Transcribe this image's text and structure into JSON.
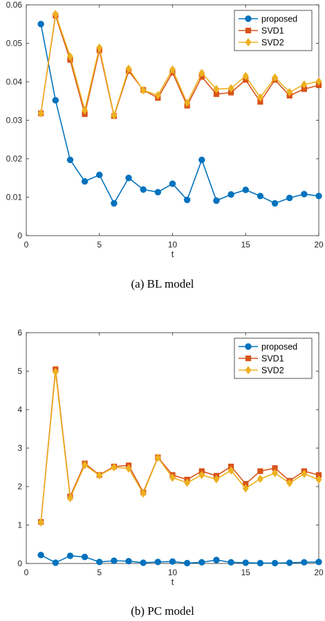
{
  "colors": {
    "proposed": "#0072BD",
    "svd1": "#D95319",
    "svd2": "#EDB120",
    "axis": "#262626"
  },
  "chart_data": [
    {
      "type": "line",
      "caption": "(a)  BL model",
      "xlabel": "t",
      "ylabel": "",
      "xlim": [
        0,
        20
      ],
      "ylim": [
        0,
        0.06
      ],
      "xticks": [
        0,
        5,
        10,
        15,
        20
      ],
      "yticks": [
        0,
        0.01,
        0.02,
        0.03,
        0.04,
        0.05,
        0.06
      ],
      "ytick_labels": [
        "0",
        "0.01",
        "0.02",
        "0.03",
        "0.04",
        "0.05",
        "0.06"
      ],
      "legend_position": "top-right",
      "x": [
        1,
        2,
        3,
        4,
        5,
        6,
        7,
        8,
        9,
        10,
        11,
        12,
        13,
        14,
        15,
        16,
        17,
        18,
        19,
        20
      ],
      "series": [
        {
          "name": "proposed",
          "marker": "circle",
          "color": "#0072BD",
          "values": [
            0.055,
            0.0352,
            0.0197,
            0.0141,
            0.0158,
            0.0084,
            0.015,
            0.012,
            0.0113,
            0.0135,
            0.0093,
            0.0197,
            0.0091,
            0.0107,
            0.0119,
            0.0103,
            0.0084,
            0.0098,
            0.0108,
            0.0103
          ]
        },
        {
          "name": "SVD1",
          "marker": "square",
          "color": "#D95319",
          "values": [
            0.0318,
            0.0572,
            0.0457,
            0.0316,
            0.0482,
            0.0311,
            0.0428,
            0.0379,
            0.0358,
            0.0424,
            0.0338,
            0.0413,
            0.0368,
            0.0372,
            0.0405,
            0.0348,
            0.0405,
            0.0364,
            0.0381,
            0.0391
          ]
        },
        {
          "name": "SVD2",
          "marker": "diamond",
          "color": "#EDB120",
          "values": [
            0.0318,
            0.0576,
            0.0466,
            0.0326,
            0.0489,
            0.0313,
            0.0434,
            0.0378,
            0.0365,
            0.0432,
            0.0345,
            0.0423,
            0.0381,
            0.0383,
            0.0415,
            0.0359,
            0.0411,
            0.0373,
            0.0393,
            0.0401
          ]
        }
      ]
    },
    {
      "type": "line",
      "caption": "(b)  PC model",
      "xlabel": "t",
      "ylabel": "",
      "xlim": [
        0,
        20
      ],
      "ylim": [
        0,
        6
      ],
      "xticks": [
        0,
        5,
        10,
        15,
        20
      ],
      "yticks": [
        0,
        1,
        2,
        3,
        4,
        5,
        6
      ],
      "ytick_labels": [
        "0",
        "1",
        "2",
        "3",
        "4",
        "5",
        "6"
      ],
      "legend_position": "top-right",
      "x": [
        1,
        2,
        3,
        4,
        5,
        6,
        7,
        8,
        9,
        10,
        11,
        12,
        13,
        14,
        15,
        16,
        17,
        18,
        19,
        20
      ],
      "series": [
        {
          "name": "proposed",
          "marker": "circle",
          "color": "#0072BD",
          "values": [
            0.22,
            0.02,
            0.2,
            0.17,
            0.04,
            0.07,
            0.06,
            0.02,
            0.04,
            0.05,
            0.01,
            0.03,
            0.09,
            0.03,
            0.02,
            0.01,
            0.01,
            0.02,
            0.03,
            0.04
          ]
        },
        {
          "name": "SVD1",
          "marker": "square",
          "color": "#D95319",
          "values": [
            1.08,
            5.05,
            1.74,
            2.6,
            2.3,
            2.52,
            2.55,
            1.85,
            2.76,
            2.3,
            2.18,
            2.4,
            2.28,
            2.52,
            2.07,
            2.4,
            2.48,
            2.15,
            2.4,
            2.3
          ]
        },
        {
          "name": "SVD2",
          "marker": "diamond",
          "color": "#EDB120",
          "values": [
            1.07,
            4.98,
            1.7,
            2.56,
            2.29,
            2.5,
            2.47,
            1.82,
            2.75,
            2.23,
            2.1,
            2.3,
            2.19,
            2.42,
            1.95,
            2.2,
            2.35,
            2.09,
            2.33,
            2.18
          ]
        }
      ]
    }
  ]
}
